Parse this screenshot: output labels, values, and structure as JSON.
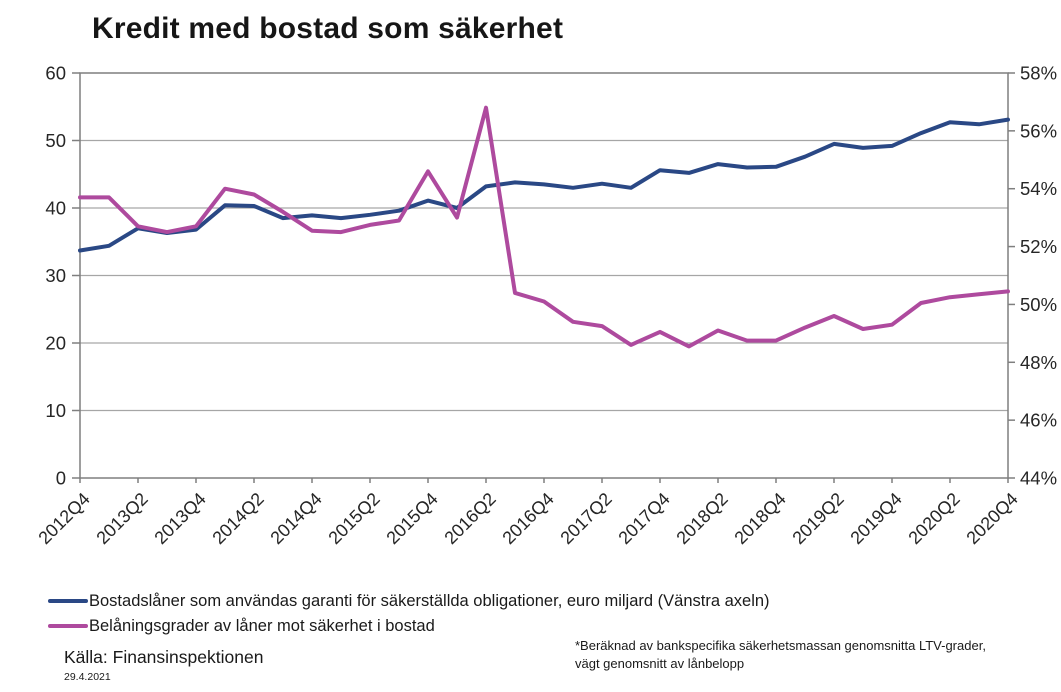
{
  "title": "Kredit med bostad som säkerhet",
  "source": {
    "label": "Källa: Finansinspektionen",
    "date": "29.4.2021"
  },
  "footnote": "*Beräknad av bankspecifika säkerhetsmassan genomsnitta LTV-grader, vägt genomsnitt av lånbelopp",
  "colors": {
    "series1_blue": "#2A4885",
    "series2_magenta": "#AE4A9E",
    "gridline": "#A6A6A6",
    "axis_border": "#7F7F7F",
    "text": "#262626"
  },
  "chart_data": {
    "type": "line",
    "title": "Kredit med bostad som säkerhet",
    "x": [
      "2012Q4",
      "2013Q1",
      "2013Q2",
      "2013Q3",
      "2013Q4",
      "2014Q1",
      "2014Q2",
      "2014Q3",
      "2014Q4",
      "2015Q1",
      "2015Q2",
      "2015Q3",
      "2015Q4",
      "2016Q1",
      "2016Q2",
      "2016Q3",
      "2016Q4",
      "2017Q1",
      "2017Q2",
      "2017Q3",
      "2017Q4",
      "2018Q1",
      "2018Q2",
      "2018Q3",
      "2018Q4",
      "2019Q1",
      "2019Q2",
      "2019Q3",
      "2019Q4",
      "2020Q1",
      "2020Q2",
      "2020Q3",
      "2020Q4"
    ],
    "x_label_every": 2,
    "x_tick_labels": [
      "2012Q4",
      "2013Q2",
      "2013Q4",
      "2014Q2",
      "2014Q4",
      "2015Q2",
      "2015Q4",
      "2016Q2",
      "2016Q4",
      "2017Q2",
      "2017Q4",
      "2018Q2",
      "2018Q4",
      "2019Q2",
      "2019Q4",
      "2020Q2",
      "2020Q4"
    ],
    "series": [
      {
        "name": "Bostadslåner som användas garanti för säkerställda obligationer, euro miljard (Vänstra axeln)",
        "axis": "left",
        "color": "#2A4885",
        "values": [
          33.7,
          34.4,
          37.0,
          36.3,
          36.8,
          40.4,
          40.3,
          38.5,
          38.9,
          38.5,
          39.0,
          39.6,
          41.1,
          40.0,
          43.2,
          43.8,
          43.5,
          43.0,
          43.6,
          43.0,
          45.6,
          45.2,
          46.5,
          46.0,
          46.1,
          47.6,
          49.5,
          48.9,
          49.2,
          51.1,
          52.7,
          52.4,
          53.1
        ]
      },
      {
        "name": "Belåningsgrader av låner mot säkerhet i bostad",
        "axis": "right",
        "color": "#AE4A9E",
        "values": [
          53.7,
          53.7,
          52.7,
          52.5,
          52.7,
          54.0,
          53.8,
          53.2,
          52.55,
          52.5,
          52.75,
          52.9,
          54.6,
          53.0,
          56.8,
          50.4,
          50.1,
          49.4,
          49.25,
          48.6,
          49.05,
          48.55,
          49.1,
          48.75,
          48.75,
          49.2,
          49.6,
          49.15,
          49.3,
          50.05,
          50.25,
          50.35,
          50.45
        ]
      }
    ],
    "left_axis": {
      "min": 0,
      "max": 60,
      "step": 10,
      "tick_labels": [
        "0",
        "10",
        "20",
        "30",
        "40",
        "50",
        "60"
      ]
    },
    "right_axis": {
      "min": 44,
      "max": 58,
      "step": 2,
      "tick_labels": [
        "44%",
        "46%",
        "48%",
        "50%",
        "52%",
        "54%",
        "56%",
        "58%"
      ]
    },
    "grid": true,
    "legend_position": "bottom"
  }
}
